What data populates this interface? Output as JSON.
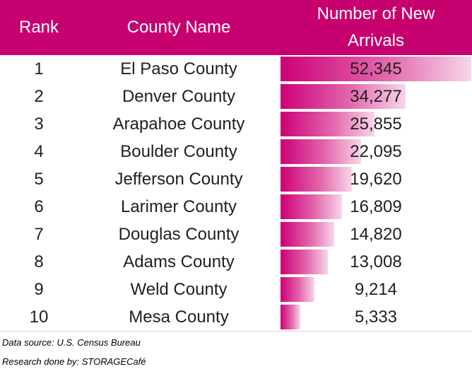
{
  "header": {
    "rank": "Rank",
    "county": "County Name",
    "arrivals_line1": "Number of New",
    "arrivals_line2": "Arrivals"
  },
  "rows": [
    {
      "rank": "1",
      "county": "El Paso County",
      "value_text": "52,345"
    },
    {
      "rank": "2",
      "county": "Denver County",
      "value_text": "34,277"
    },
    {
      "rank": "3",
      "county": "Arapahoe County",
      "value_text": "25,855"
    },
    {
      "rank": "4",
      "county": "Boulder County",
      "value_text": "22,095"
    },
    {
      "rank": "5",
      "county": "Jefferson County",
      "value_text": "19,620"
    },
    {
      "rank": "6",
      "county": "Larimer County",
      "value_text": "16,809"
    },
    {
      "rank": "7",
      "county": "Douglas County",
      "value_text": "14,820"
    },
    {
      "rank": "8",
      "county": "Adams County",
      "value_text": "13,008"
    },
    {
      "rank": "9",
      "county": "Weld County",
      "value_text": "9,214"
    },
    {
      "rank": "10",
      "county": "Mesa County",
      "value_text": "5,333"
    }
  ],
  "footer": {
    "source": "Data source: U.S. Census Bureau",
    "research": "Research done by: STORAGECafé"
  },
  "colors": {
    "header_bg": "#c7006f",
    "bar_start": "#cc0077",
    "bar_end": "#f7d6e9"
  },
  "chart_data": {
    "type": "table",
    "columns": [
      "Rank",
      "County Name",
      "Number of New Arrivals"
    ],
    "categories": [
      "El Paso County",
      "Denver County",
      "Arapahoe County",
      "Boulder County",
      "Jefferson County",
      "Larimer County",
      "Douglas County",
      "Adams County",
      "Weld County",
      "Mesa County"
    ],
    "values": [
      52345,
      34277,
      25855,
      22095,
      19620,
      16809,
      14820,
      13008,
      9214,
      5333
    ],
    "bar_max": 52345
  }
}
